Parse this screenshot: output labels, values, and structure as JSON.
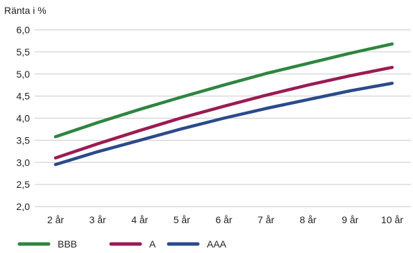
{
  "chart_data": {
    "type": "line",
    "ylabel": "Ränta i %",
    "xlabel": "",
    "categories": [
      "2 år",
      "3 år",
      "4 år",
      "5 år",
      "6 år",
      "7 år",
      "8 år",
      "9 år",
      "10 år"
    ],
    "y_tick_labels": [
      "2,0",
      "2,5",
      "3,0",
      "3,5",
      "4,0",
      "4,5",
      "5,0",
      "5,5",
      "6,0"
    ],
    "ylim": [
      2.0,
      6.0
    ],
    "grid": true,
    "legend_position": "bottom-left",
    "series": [
      {
        "name": "BBB",
        "color": "#2e8540",
        "values": [
          3.58,
          3.9,
          4.2,
          4.48,
          4.75,
          5.01,
          5.24,
          5.47,
          5.68
        ]
      },
      {
        "name": "A",
        "color": "#9b1b52",
        "values": [
          3.1,
          3.42,
          3.72,
          4.01,
          4.27,
          4.52,
          4.75,
          4.96,
          5.15
        ]
      },
      {
        "name": "AAA",
        "color": "#2c4a8a",
        "values": [
          2.95,
          3.24,
          3.5,
          3.76,
          4.0,
          4.22,
          4.42,
          4.62,
          4.79
        ]
      }
    ]
  }
}
